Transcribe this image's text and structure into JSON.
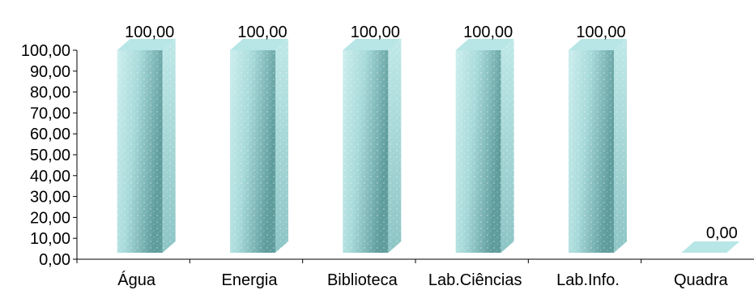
{
  "chart_data": {
    "type": "bar",
    "style": "3d",
    "categories": [
      "Água",
      "Energia",
      "Biblioteca",
      "Lab.Ciências",
      "Lab.Info.",
      "Quadra"
    ],
    "values": [
      100,
      100,
      100,
      100,
      100,
      0
    ],
    "data_labels": [
      "100,00",
      "100,00",
      "100,00",
      "100,00",
      "100,00",
      "0,00"
    ],
    "y_tick_labels": [
      "0,00",
      "10,00",
      "20,00",
      "30,00",
      "40,00",
      "50,00",
      "60,00",
      "70,00",
      "80,00",
      "90,00",
      "100,00"
    ],
    "ylim": [
      0,
      100
    ],
    "grid": false,
    "legend": "none",
    "colors": {
      "bar_front_light": "#c6ecec",
      "bar_front_dark": "#5e9a9a",
      "bar_side": "#9fd2d2",
      "bar_top": "#b8e6e6",
      "axis": "#000000"
    }
  }
}
